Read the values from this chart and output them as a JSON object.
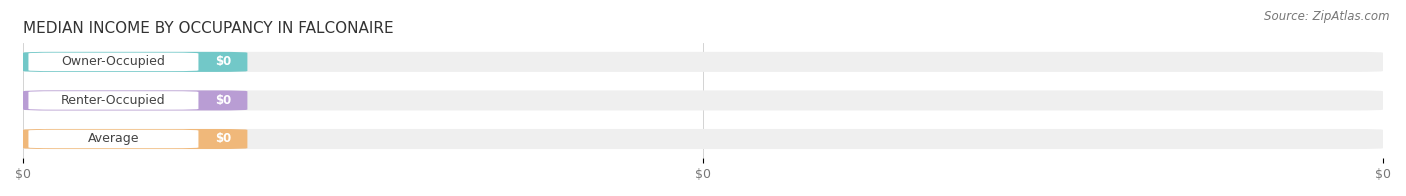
{
  "title": "MEDIAN INCOME BY OCCUPANCY IN FALCONAIRE",
  "source_text": "Source: ZipAtlas.com",
  "categories": [
    "Owner-Occupied",
    "Renter-Occupied",
    "Average"
  ],
  "values": [
    0,
    0,
    0
  ],
  "bar_colors": [
    "#72c8c8",
    "#b99dd4",
    "#f0b87a"
  ],
  "bar_bg_color": "#efefef",
  "label_color": "#444444",
  "value_labels": [
    "$0",
    "$0",
    "$0"
  ],
  "x_tick_labels": [
    "$0",
    "$0",
    "$0"
  ],
  "title_fontsize": 11,
  "source_fontsize": 8.5,
  "bar_label_fontsize": 9,
  "value_label_fontsize": 8.5,
  "tick_fontsize": 9,
  "background_color": "#ffffff",
  "bar_height": 0.52,
  "fig_width": 14.06,
  "fig_height": 1.96
}
